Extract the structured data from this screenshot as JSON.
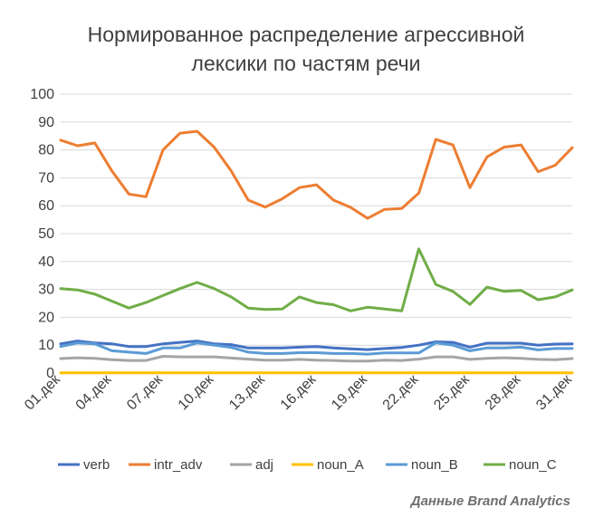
{
  "chart_data": {
    "type": "line",
    "title_lines": [
      "Нормированное распределение агрессивной",
      "лексики по частям речи"
    ],
    "ylim": [
      0,
      100
    ],
    "yticks": [
      0,
      10,
      20,
      30,
      40,
      50,
      60,
      70,
      80,
      90,
      100
    ],
    "x": [
      "01.дек",
      "02.дек",
      "03.дек",
      "04.дек",
      "05.дек",
      "06.дек",
      "07.дек",
      "08.дек",
      "09.дек",
      "10.дек",
      "11.дек",
      "12.дек",
      "13.дек",
      "14.дек",
      "15.дек",
      "16.дек",
      "17.дек",
      "18.дек",
      "19.дек",
      "20.дек",
      "21.дек",
      "22.дек",
      "23.дек",
      "24.дек",
      "25.дек",
      "26.дек",
      "27.дек",
      "28.дек",
      "29.дек",
      "30.дек",
      "31.дек"
    ],
    "xtick_labels": [
      "01.дек",
      "04.дек",
      "07.дек",
      "10.дек",
      "13.дек",
      "16.дек",
      "19.дек",
      "22.дек",
      "25.дек",
      "28.дек",
      "31.дек"
    ],
    "grid": true,
    "legend_position": "bottom",
    "series": [
      {
        "name": "verb",
        "color": "#4472C4",
        "values": [
          10.5,
          11.5,
          10.8,
          10.5,
          9.5,
          9.5,
          10.5,
          11,
          11.5,
          10.5,
          10.2,
          9,
          9,
          9,
          9.3,
          9.5,
          9,
          8.7,
          8.4,
          8.8,
          9.2,
          10,
          11.2,
          11,
          9.3,
          10.7,
          10.7,
          10.7,
          10,
          10.4,
          10.5
        ]
      },
      {
        "name": "intr_adv",
        "color": "#ED7D31",
        "values": [
          83.5,
          81.5,
          82.5,
          72.5,
          64.2,
          63.2,
          80,
          86,
          86.7,
          81,
          72.5,
          62,
          59.5,
          62.5,
          66.5,
          67.5,
          62,
          59.4,
          55.5,
          58.7,
          59,
          64.5,
          83.8,
          81.8,
          66.5,
          77.5,
          81,
          81.8,
          72.2,
          74.5,
          80.8
        ]
      },
      {
        "name": "adj",
        "color": "#A5A5A5",
        "values": [
          5.2,
          5.5,
          5.3,
          4.8,
          4.5,
          4.5,
          6,
          5.8,
          5.8,
          5.8,
          5.4,
          5,
          4.6,
          4.6,
          4.9,
          4.6,
          4.5,
          4.3,
          4.3,
          4.6,
          4.5,
          5,
          5.8,
          5.8,
          4.9,
          5.3,
          5.5,
          5.3,
          4.9,
          4.8,
          5.2
        ]
      },
      {
        "name": "noun_A",
        "color": "#FFC000",
        "values": [
          0.1,
          0.1,
          0.1,
          0.1,
          0.1,
          0.1,
          0.1,
          0.1,
          0.1,
          0.1,
          0.1,
          0.1,
          0.1,
          0.1,
          0.1,
          0.1,
          0.1,
          0.1,
          0.1,
          0.1,
          0.1,
          0.1,
          0.1,
          0.1,
          0.1,
          0.1,
          0.1,
          0.1,
          0.1,
          0.1,
          0.1
        ]
      },
      {
        "name": "noun_B",
        "color": "#5B9BD5",
        "values": [
          9.5,
          10.8,
          10.5,
          8,
          7.5,
          7,
          9,
          9,
          10.8,
          10,
          9.2,
          7.5,
          7,
          7,
          7.3,
          7.3,
          7,
          7,
          6.8,
          7.2,
          7.2,
          7.2,
          10.8,
          10,
          8,
          9,
          9,
          9.3,
          8.3,
          8.8,
          8.8
        ]
      },
      {
        "name": "noun_C",
        "color": "#70AD47",
        "values": [
          30.3,
          29.8,
          28.3,
          25.8,
          23.3,
          25.3,
          27.8,
          30.3,
          32.5,
          30.3,
          27.3,
          23.3,
          22.8,
          23,
          27.3,
          25.3,
          24.5,
          22.3,
          23.6,
          23,
          22.3,
          44.5,
          31.8,
          29.3,
          24.6,
          30.8,
          29.3,
          29.6,
          26.3,
          27.3,
          29.8
        ]
      }
    ]
  },
  "source_note": "Данные Brand Analytics"
}
